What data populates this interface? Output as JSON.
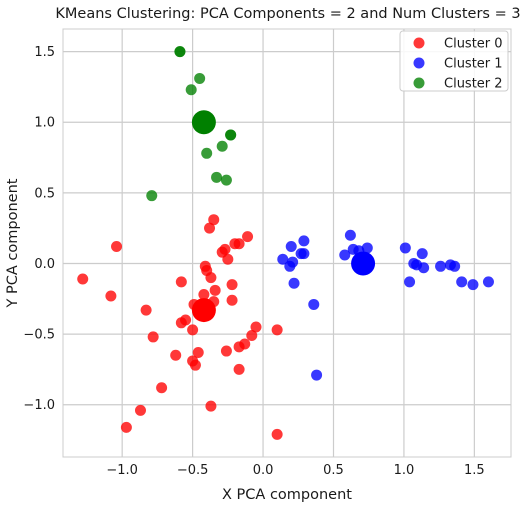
{
  "chart_data": {
    "type": "scatter",
    "title": "KMeans Clustering: PCA Components = 2 and Num Clusters = 3",
    "xlabel": "X PCA component",
    "ylabel": "Y PCA component",
    "xlim": [
      -1.42,
      1.76
    ],
    "ylim": [
      -1.37,
      1.66
    ],
    "xticks": [
      -1.0,
      -0.5,
      0.0,
      0.5,
      1.0,
      1.5
    ],
    "xtick_labels": [
      "−1.0",
      "−0.5",
      "0.0",
      "0.5",
      "1.0",
      "1.5"
    ],
    "yticks": [
      -1.0,
      -0.5,
      0.0,
      0.5,
      1.0,
      1.5
    ],
    "ytick_labels": [
      "−1.0",
      "−0.5",
      "0.0",
      "0.5",
      "1.0",
      "1.5"
    ],
    "grid": true,
    "legend_position": "top-right",
    "series": [
      {
        "name": "Cluster 0",
        "color": "#ff0000",
        "points": [
          [
            -1.28,
            -0.11
          ],
          [
            -1.04,
            0.12
          ],
          [
            -1.08,
            -0.23
          ],
          [
            -0.83,
            -0.33
          ],
          [
            -0.97,
            -1.16
          ],
          [
            -0.87,
            -1.04
          ],
          [
            -0.78,
            -0.52
          ],
          [
            -0.72,
            -0.88
          ],
          [
            -0.62,
            -0.65
          ],
          [
            -0.58,
            -0.42
          ],
          [
            -0.55,
            -0.4
          ],
          [
            -0.58,
            -0.13
          ],
          [
            -0.5,
            -0.47
          ],
          [
            -0.5,
            -0.69
          ],
          [
            -0.46,
            -0.63
          ],
          [
            -0.48,
            -0.72
          ],
          [
            -0.49,
            -0.29
          ],
          [
            -0.42,
            -0.22
          ],
          [
            -0.4,
            -0.05
          ],
          [
            -0.41,
            -0.02
          ],
          [
            -0.38,
            0.25
          ],
          [
            -0.35,
            0.31
          ],
          [
            -0.37,
            -0.1
          ],
          [
            -0.34,
            -0.19
          ],
          [
            -0.35,
            -0.27
          ],
          [
            -0.37,
            -1.01
          ],
          [
            -0.27,
            0.1
          ],
          [
            -0.29,
            0.08
          ],
          [
            -0.25,
            0.03
          ],
          [
            -0.26,
            -0.62
          ],
          [
            -0.22,
            -0.15
          ],
          [
            -0.22,
            -0.26
          ],
          [
            -0.2,
            0.14
          ],
          [
            -0.17,
            0.14
          ],
          [
            -0.17,
            -0.59
          ],
          [
            -0.13,
            -0.57
          ],
          [
            -0.11,
            0.19
          ],
          [
            -0.05,
            -0.45
          ],
          [
            -0.08,
            -0.51
          ],
          [
            0.1,
            -0.47
          ],
          [
            -0.17,
            -0.75
          ],
          [
            0.1,
            -1.21
          ]
        ],
        "centroid": [
          -0.42,
          -0.33
        ]
      },
      {
        "name": "Cluster 1",
        "color": "#0000ff",
        "points": [
          [
            0.14,
            0.03
          ],
          [
            0.2,
            0.12
          ],
          [
            0.19,
            -0.02
          ],
          [
            0.21,
            0.01
          ],
          [
            0.22,
            -0.14
          ],
          [
            0.27,
            0.07
          ],
          [
            0.29,
            0.16
          ],
          [
            0.29,
            0.07
          ],
          [
            0.36,
            -0.29
          ],
          [
            0.38,
            -0.79
          ],
          [
            0.58,
            0.06
          ],
          [
            0.62,
            0.2
          ],
          [
            0.64,
            0.1
          ],
          [
            0.68,
            0.09
          ],
          [
            0.74,
            0.11
          ],
          [
            1.01,
            0.11
          ],
          [
            1.07,
            0.0
          ],
          [
            1.09,
            -0.01
          ],
          [
            1.04,
            -0.13
          ],
          [
            1.13,
            0.07
          ],
          [
            1.14,
            -0.03
          ],
          [
            1.26,
            -0.02
          ],
          [
            1.33,
            -0.01
          ],
          [
            1.36,
            -0.02
          ],
          [
            1.41,
            -0.13
          ],
          [
            1.49,
            -0.15
          ],
          [
            1.6,
            -0.13
          ]
        ],
        "centroid": [
          0.71,
          0.0
        ]
      },
      {
        "name": "Cluster 2",
        "color": "#008000",
        "points": [
          [
            -0.59,
            1.5
          ],
          [
            -0.59,
            1.5
          ],
          [
            -0.51,
            1.23
          ],
          [
            -0.45,
            1.31
          ],
          [
            -0.4,
            0.78
          ],
          [
            -0.33,
            0.61
          ],
          [
            -0.29,
            0.83
          ],
          [
            -0.26,
            0.59
          ],
          [
            -0.23,
            0.91
          ],
          [
            -0.23,
            0.91
          ],
          [
            -0.79,
            0.48
          ]
        ],
        "centroid": [
          -0.42,
          1.0
        ]
      }
    ]
  }
}
